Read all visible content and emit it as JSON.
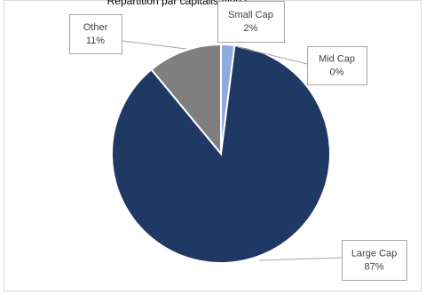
{
  "chart_data": {
    "type": "pie",
    "title": "Répartition par capitalisation (",
    "categories": [
      "Small Cap",
      "Mid Cap",
      "Large Cap",
      "Other"
    ],
    "values": [
      2,
      0,
      87,
      11
    ],
    "value_labels": [
      "2%",
      "0%",
      "87%",
      "11%"
    ],
    "colors": [
      "#8faadc",
      "#2f5597",
      "#203864",
      "#7f7f7f"
    ]
  }
}
